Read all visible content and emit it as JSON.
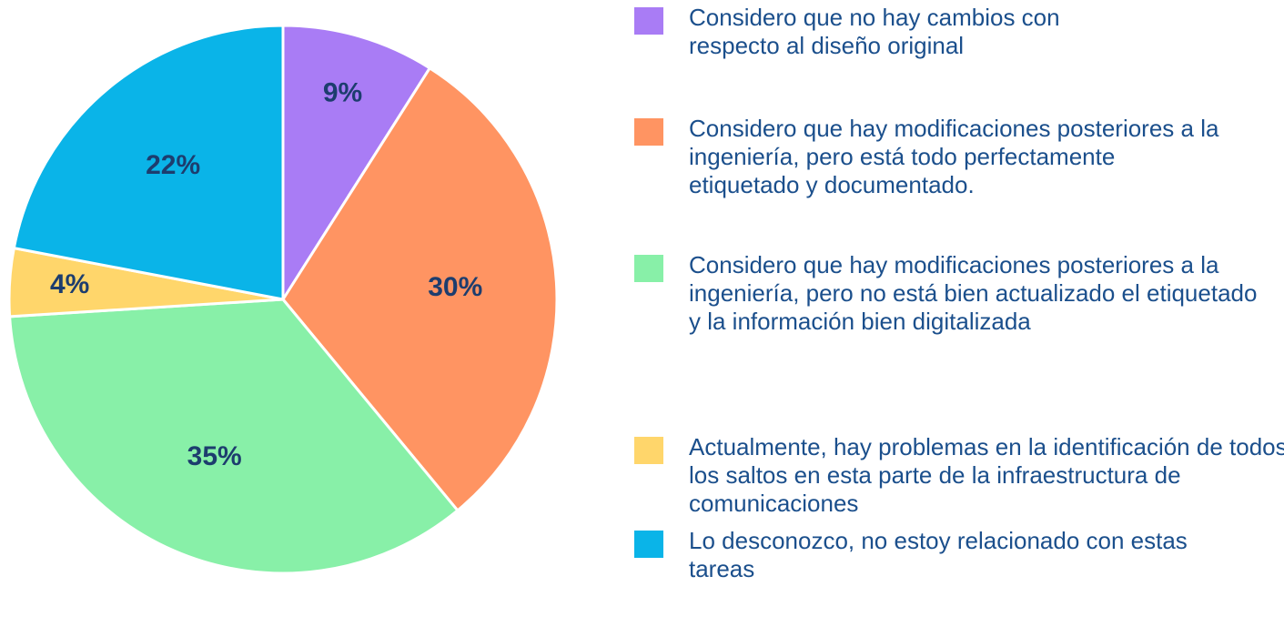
{
  "chart_data": {
    "type": "pie",
    "categories": [
      "Considero que no hay cambios con respecto al diseño original",
      "Considero que hay modificaciones posteriores a la ingeniería, pero está todo perfectamente etiquetado y documentado.",
      "Considero que hay modificaciones posteriores a la ingeniería, pero no está bien actualizado el etiquetado y la información bien digitalizada",
      "Actualmente, hay problemas en la identificación de todos los saltos en esta parte de la infraestructura de comunicaciones",
      "Lo desconozco, no estoy relacionado con estas tareas"
    ],
    "values": [
      9,
      30,
      35,
      4,
      22
    ],
    "value_labels": [
      "9%",
      "30%",
      "35%",
      "4%",
      "22%"
    ],
    "colors": [
      "#a97cf5",
      "#ff9462",
      "#88f0a8",
      "#ffd66b",
      "#0ab4e8"
    ]
  }
}
